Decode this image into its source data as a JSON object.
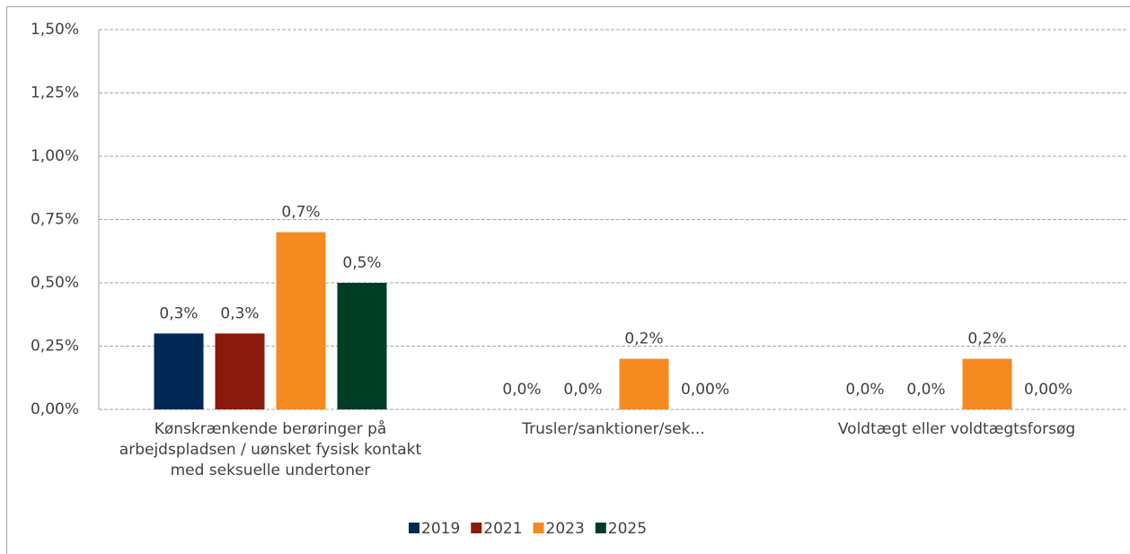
{
  "chart_data": {
    "type": "bar",
    "categories": [
      "Kønskrænkende berøringer på arbejdspladsen / uønsket fysisk kontakt med seksuelle undertoner",
      "Trusler/sanktioner/sek...",
      "Voldtægt eller voldtægtsforsøg"
    ],
    "series": [
      {
        "name": "2019",
        "color": "#002855",
        "values": [
          0.3,
          0,
          0
        ],
        "value_labels": [
          "0,3%",
          "0,0%",
          "0,0%"
        ]
      },
      {
        "name": "2021",
        "color": "#8b1a0c",
        "values": [
          0.3,
          0,
          0
        ],
        "value_labels": [
          "0,3%",
          "0,0%",
          "0,0%"
        ]
      },
      {
        "name": "2023",
        "color": "#f48a20",
        "values": [
          0.7,
          0.2,
          0.2
        ],
        "value_labels": [
          "0,7%",
          "0,2%",
          "0,2%"
        ]
      },
      {
        "name": "2025",
        "color": "#003d26",
        "values": [
          0.5,
          0,
          0
        ],
        "value_labels": [
          "0,5%",
          "0,00%",
          "0,00%"
        ]
      }
    ],
    "ylim": [
      0,
      1.5
    ],
    "yticks": [
      {
        "value": 0,
        "label": "0,00%"
      },
      {
        "value": 0.25,
        "label": "0,25%"
      },
      {
        "value": 0.5,
        "label": "0,50%"
      },
      {
        "value": 0.75,
        "label": "0,75%"
      },
      {
        "value": 1,
        "label": "1,00%"
      },
      {
        "value": 1.25,
        "label": "1,25%"
      },
      {
        "value": 1.5,
        "label": "1,50%"
      }
    ],
    "grid": true,
    "legend": "bottom"
  }
}
